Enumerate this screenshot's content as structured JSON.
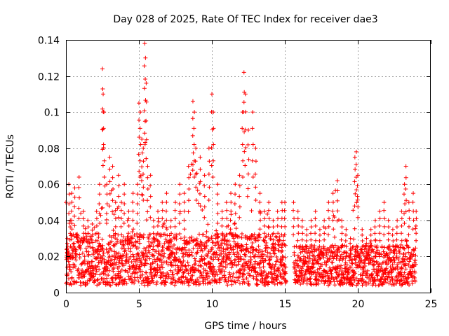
{
  "chart_data": {
    "type": "scatter",
    "title": "Day 028 of 2025, Rate Of TEC Index for receiver dae3",
    "xlabel": "GPS time / hours",
    "ylabel": "ROTI / TECUs",
    "xlim": [
      0,
      25
    ],
    "ylim": [
      0,
      0.14
    ],
    "xticks": [
      0,
      5,
      10,
      15,
      20,
      25
    ],
    "xtick_labels": [
      "0",
      "5",
      "10",
      "15",
      "20",
      "25"
    ],
    "yticks": [
      0,
      0.02,
      0.04,
      0.06,
      0.08,
      0.1,
      0.12,
      0.14
    ],
    "ytick_labels": [
      "0",
      "0.02",
      "0.04",
      "0.06",
      "0.08",
      "0.1",
      "0.12",
      "0.14"
    ],
    "grid": true,
    "marker": "+",
    "color": "#ff0000",
    "data_gap_hours": [
      15.1,
      15.6
    ],
    "series": [
      {
        "name": "ROTI",
        "x": [
          0.0,
          0.1,
          0.2,
          0.3,
          0.4,
          0.6,
          0.9,
          1.2,
          1.5,
          1.8,
          2.1,
          2.3,
          2.5,
          2.55,
          2.6,
          2.8,
          3.0,
          3.2,
          3.4,
          3.6,
          3.8,
          4.0,
          4.3,
          4.6,
          4.9,
          5.0,
          5.1,
          5.2,
          5.3,
          5.4,
          5.45,
          5.5,
          5.6,
          5.8,
          6.0,
          6.3,
          6.6,
          6.9,
          7.2,
          7.5,
          7.8,
          8.1,
          8.4,
          8.7,
          8.8,
          8.9,
          9.2,
          9.5,
          9.8,
          10.0,
          10.1,
          10.4,
          10.7,
          11.0,
          11.3,
          11.6,
          11.9,
          12.1,
          12.2,
          12.3,
          12.5,
          12.8,
          13.0,
          13.3,
          13.6,
          13.9,
          14.2,
          14.5,
          14.8,
          15.0,
          15.6,
          15.9,
          16.2,
          16.5,
          16.8,
          17.1,
          17.4,
          17.7,
          18.0,
          18.3,
          18.6,
          18.9,
          19.2,
          19.5,
          19.8,
          19.9,
          20.0,
          20.3,
          20.6,
          20.9,
          21.2,
          21.5,
          21.8,
          22.1,
          22.4,
          22.7,
          23.0,
          23.2,
          23.3,
          23.5,
          23.8,
          24.0
        ],
        "y": [
          0.05,
          0.03,
          0.06,
          0.04,
          0.055,
          0.058,
          0.064,
          0.045,
          0.04,
          0.038,
          0.045,
          0.06,
          0.124,
          0.11,
          0.1,
          0.06,
          0.075,
          0.07,
          0.05,
          0.065,
          0.05,
          0.06,
          0.045,
          0.055,
          0.06,
          0.105,
          0.1,
          0.085,
          0.08,
          0.138,
          0.13,
          0.116,
          0.07,
          0.065,
          0.04,
          0.045,
          0.05,
          0.055,
          0.04,
          0.05,
          0.06,
          0.055,
          0.07,
          0.106,
          0.1,
          0.08,
          0.075,
          0.065,
          0.08,
          0.11,
          0.1,
          0.06,
          0.045,
          0.05,
          0.055,
          0.06,
          0.065,
          0.1,
          0.122,
          0.11,
          0.09,
          0.1,
          0.08,
          0.055,
          0.045,
          0.05,
          0.04,
          0.045,
          0.05,
          0.05,
          0.05,
          0.045,
          0.04,
          0.035,
          0.04,
          0.045,
          0.035,
          0.04,
          0.05,
          0.055,
          0.062,
          0.04,
          0.035,
          0.03,
          0.075,
          0.078,
          0.065,
          0.035,
          0.03,
          0.035,
          0.04,
          0.045,
          0.05,
          0.04,
          0.035,
          0.04,
          0.045,
          0.06,
          0.07,
          0.05,
          0.055,
          0.045
        ]
      }
    ]
  }
}
